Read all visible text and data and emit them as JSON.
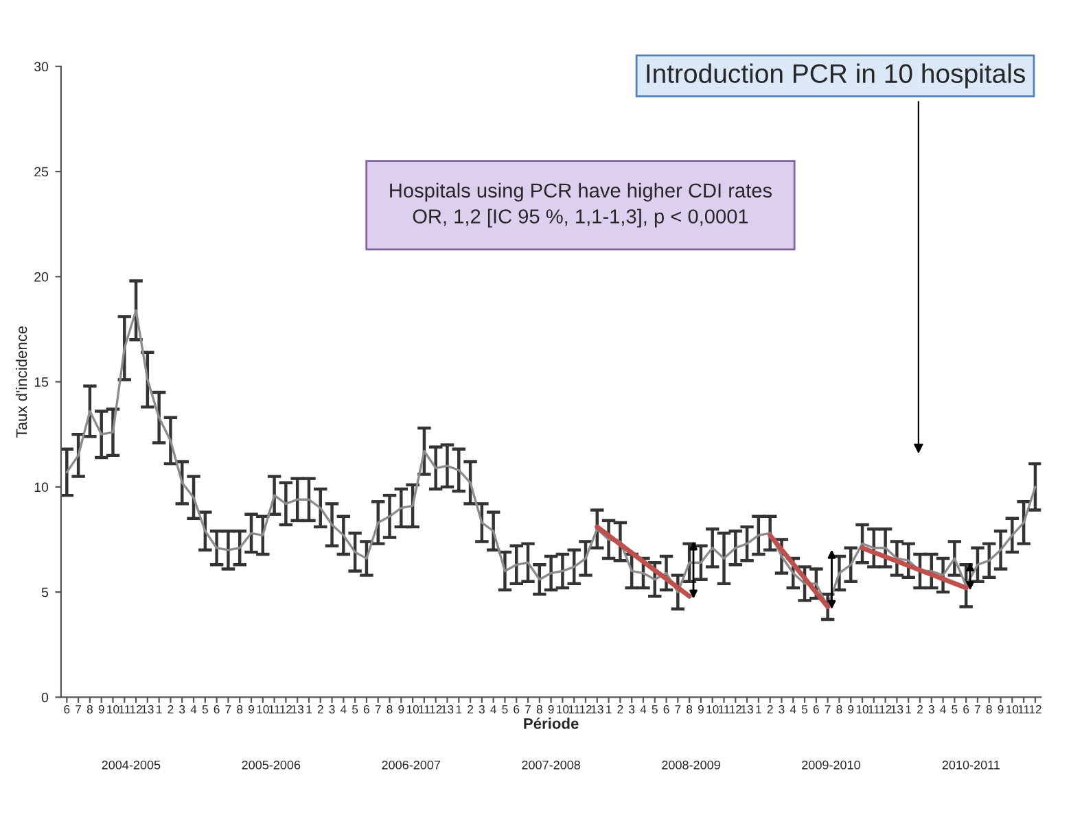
{
  "chart_data": {
    "type": "line",
    "xlabel": "Période",
    "ylabel": "Taux d'incidence",
    "categories": [
      "6",
      "7",
      "8",
      "9",
      "10",
      "11",
      "12",
      "13",
      "1",
      "2",
      "3",
      "4",
      "5",
      "6",
      "7",
      "8",
      "9",
      "10",
      "11",
      "12",
      "13",
      "1",
      "2",
      "3",
      "4",
      "5",
      "6",
      "7",
      "8",
      "9",
      "10",
      "11",
      "12",
      "13",
      "1",
      "2",
      "3",
      "4",
      "5",
      "6",
      "7",
      "8",
      "9",
      "10",
      "11",
      "12",
      "13",
      "1",
      "2",
      "3",
      "4",
      "5",
      "6",
      "7",
      "8",
      "9",
      "10",
      "11",
      "12",
      "13",
      "1",
      "2",
      "3",
      "4",
      "5",
      "6",
      "7",
      "8",
      "9",
      "10",
      "11",
      "12",
      "13",
      "1",
      "2",
      "3",
      "4",
      "5",
      "6",
      "7",
      "8",
      "9",
      "10",
      "11",
      "12"
    ],
    "series": [
      {
        "color": "#8c8c8c",
        "values": [
          10.7,
          11.5,
          13.6,
          12.5,
          12.6,
          16.6,
          18.4,
          15.1,
          13.3,
          12.2,
          10.2,
          9.5,
          7.9,
          7.1,
          7.0,
          7.1,
          7.8,
          7.7,
          9.6,
          9.2,
          9.4,
          9.4,
          9.0,
          8.2,
          7.7,
          6.9,
          6.6,
          8.3,
          8.6,
          9.0,
          9.1,
          11.7,
          10.9,
          11.0,
          10.8,
          10.2,
          8.3,
          7.9,
          6.0,
          6.3,
          6.4,
          5.6,
          5.9,
          6.0,
          6.2,
          6.6,
          8.0,
          7.5,
          7.4,
          6.0,
          5.9,
          5.6,
          5.9,
          5.0,
          6.4,
          6.4,
          7.1,
          6.6,
          7.1,
          7.3,
          7.7,
          7.8,
          6.7,
          5.9,
          5.4,
          5.4,
          4.3,
          5.9,
          6.3,
          7.3,
          7.1,
          7.1,
          6.6,
          6.5,
          6.0,
          6.0,
          5.8,
          6.6,
          5.3,
          6.3,
          6.5,
          7.0,
          7.7,
          8.3,
          10.0
        ],
        "errors": [
          1.1,
          1.0,
          1.2,
          1.1,
          1.1,
          1.5,
          1.4,
          1.3,
          1.2,
          1.1,
          1.0,
          1.0,
          0.9,
          0.8,
          0.9,
          0.8,
          0.9,
          0.9,
          0.9,
          1.0,
          1.0,
          1.0,
          0.9,
          1.0,
          0.9,
          0.9,
          0.8,
          1.0,
          1.0,
          0.9,
          1.0,
          1.1,
          1.0,
          1.0,
          1.0,
          1.0,
          0.9,
          0.9,
          0.9,
          0.9,
          0.9,
          0.7,
          0.8,
          0.8,
          0.8,
          0.8,
          0.9,
          0.9,
          0.9,
          0.8,
          0.7,
          0.8,
          0.8,
          0.8,
          0.9,
          0.8,
          0.9,
          1.2,
          0.8,
          0.8,
          0.9,
          0.8,
          0.8,
          0.7,
          0.8,
          0.7,
          0.6,
          0.8,
          0.8,
          0.9,
          0.9,
          0.9,
          0.8,
          0.8,
          0.8,
          0.8,
          0.8,
          0.8,
          1.0,
          0.8,
          0.8,
          0.9,
          0.8,
          1.0,
          1.1
        ]
      },
      {
        "color": "#c0504d",
        "values": [
          null,
          null,
          null,
          null,
          null,
          null,
          null,
          null,
          null,
          null,
          null,
          null,
          null,
          null,
          null,
          null,
          null,
          null,
          null,
          null,
          null,
          null,
          null,
          null,
          null,
          null,
          null,
          null,
          null,
          null,
          null,
          null,
          null,
          null,
          null,
          null,
          null,
          null,
          null,
          null,
          null,
          null,
          null,
          null,
          null,
          null,
          8.1,
          null,
          null,
          null,
          null,
          null,
          null,
          null,
          4.8,
          null,
          null,
          null,
          null,
          null,
          null,
          null,
          null,
          null,
          null,
          null,
          null,
          null,
          null,
          null,
          null,
          null,
          null,
          null,
          null,
          null,
          null,
          null,
          null,
          null,
          null,
          null,
          null,
          null,
          null
        ]
      },
      {
        "color": "#c0504d",
        "values": [
          null,
          null,
          null,
          null,
          null,
          null,
          null,
          null,
          null,
          null,
          null,
          null,
          null,
          null,
          null,
          null,
          null,
          null,
          null,
          null,
          null,
          null,
          null,
          null,
          null,
          null,
          null,
          null,
          null,
          null,
          null,
          null,
          null,
          null,
          null,
          null,
          null,
          null,
          null,
          null,
          null,
          null,
          null,
          null,
          null,
          null,
          null,
          null,
          null,
          null,
          null,
          null,
          null,
          null,
          null,
          null,
          null,
          null,
          null,
          null,
          null,
          7.7,
          null,
          null,
          null,
          null,
          4.3,
          null,
          null,
          null,
          null,
          null,
          null,
          null,
          null,
          null,
          null,
          null,
          null,
          null,
          null,
          null,
          null,
          null,
          null
        ]
      },
      {
        "color": "#c0504d",
        "values": [
          null,
          null,
          null,
          null,
          null,
          null,
          null,
          null,
          null,
          null,
          null,
          null,
          null,
          null,
          null,
          null,
          null,
          null,
          null,
          null,
          null,
          null,
          null,
          null,
          null,
          null,
          null,
          null,
          null,
          null,
          null,
          null,
          null,
          null,
          null,
          null,
          null,
          null,
          null,
          null,
          null,
          null,
          null,
          null,
          null,
          null,
          null,
          null,
          null,
          null,
          null,
          null,
          null,
          null,
          null,
          null,
          null,
          null,
          null,
          null,
          null,
          null,
          null,
          null,
          null,
          null,
          null,
          null,
          null,
          7.1,
          null,
          null,
          null,
          null,
          null,
          null,
          null,
          null,
          5.2,
          null,
          null,
          null,
          null,
          null,
          null
        ]
      }
    ],
    "ylim": [
      0,
      30
    ],
    "yticks": [
      0,
      5,
      10,
      15,
      20,
      25,
      30
    ],
    "annotations": [
      "2004-2005",
      "2005-2006",
      "2006-2007",
      "2007-2008",
      "2008-2009",
      "2009-2010",
      "2010-2011",
      "Hospitals using PCR have higher CDI rates\nOR, 1,2 [IC 95 %, 1,1-1,3], p < 0,0001",
      "Introduction PCR in 10 hospitals"
    ],
    "grid": false,
    "legend": false,
    "marker": "none",
    "line_style": "solid"
  }
}
